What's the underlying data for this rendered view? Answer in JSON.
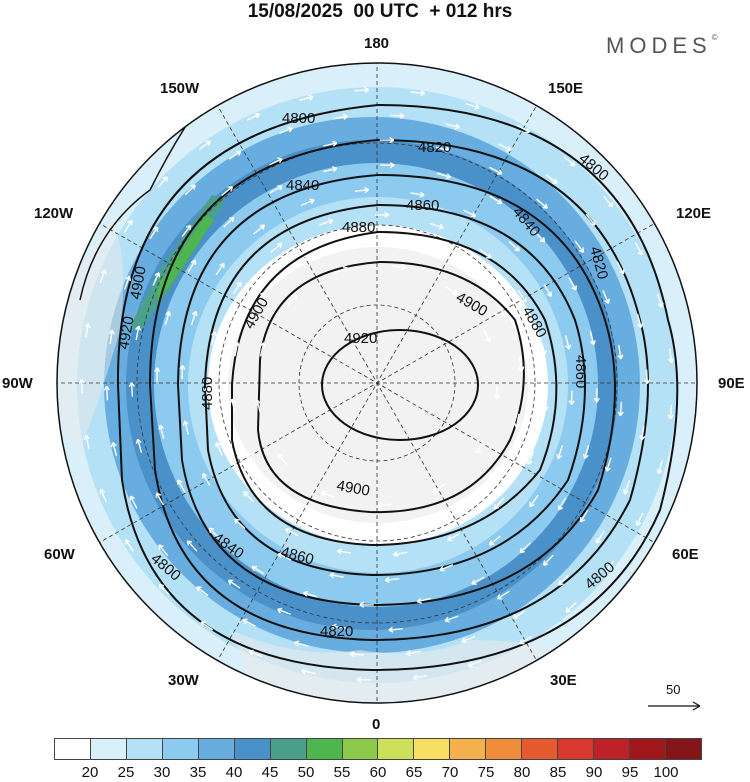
{
  "header": {
    "title": "15/08/2025  00 UTC  + 012 hrs",
    "brand": "MODES",
    "brand_mark": "©"
  },
  "map": {
    "projection": "north polar stereographic",
    "longitude_labels": {
      "top": "180",
      "bottom": "0",
      "left": "90W",
      "right": "90E",
      "upper_left_outer": "150W",
      "upper_left_inner": "120W",
      "upper_right_outer": "150E",
      "upper_right_inner": "120E",
      "lower_left_outer": "30W",
      "lower_left_inner": "60W",
      "lower_right_outer": "30E",
      "lower_right_inner": "60E"
    },
    "contour_levels": [
      "4800",
      "4820",
      "4840",
      "4860",
      "4880",
      "4900",
      "4920"
    ],
    "contour_labels": [
      "4800",
      "4820",
      "4840",
      "4860",
      "4880",
      "4900",
      "4920",
      "4900",
      "4900",
      "4880",
      "4860",
      "4840",
      "4820",
      "4800",
      "4800",
      "4820",
      "4840",
      "4860",
      "4880",
      "4900",
      "4920",
      "4800"
    ],
    "reference_vector_label": "50"
  },
  "colorbar": {
    "ticks": [
      "20",
      "25",
      "30",
      "35",
      "40",
      "45",
      "50",
      "55",
      "60",
      "65",
      "70",
      "75",
      "80",
      "85",
      "90",
      "95",
      "100"
    ],
    "colors": [
      "#ffffff",
      "#d9f0fb",
      "#b5e1f7",
      "#8ccaf0",
      "#67addf",
      "#4a91ca",
      "#4aa08a",
      "#4fb64f",
      "#8dca4a",
      "#cde05a",
      "#f7df63",
      "#f5b04e",
      "#f08d3c",
      "#e65a30",
      "#d8382e",
      "#be2127",
      "#a0171c",
      "#84161a"
    ]
  }
}
